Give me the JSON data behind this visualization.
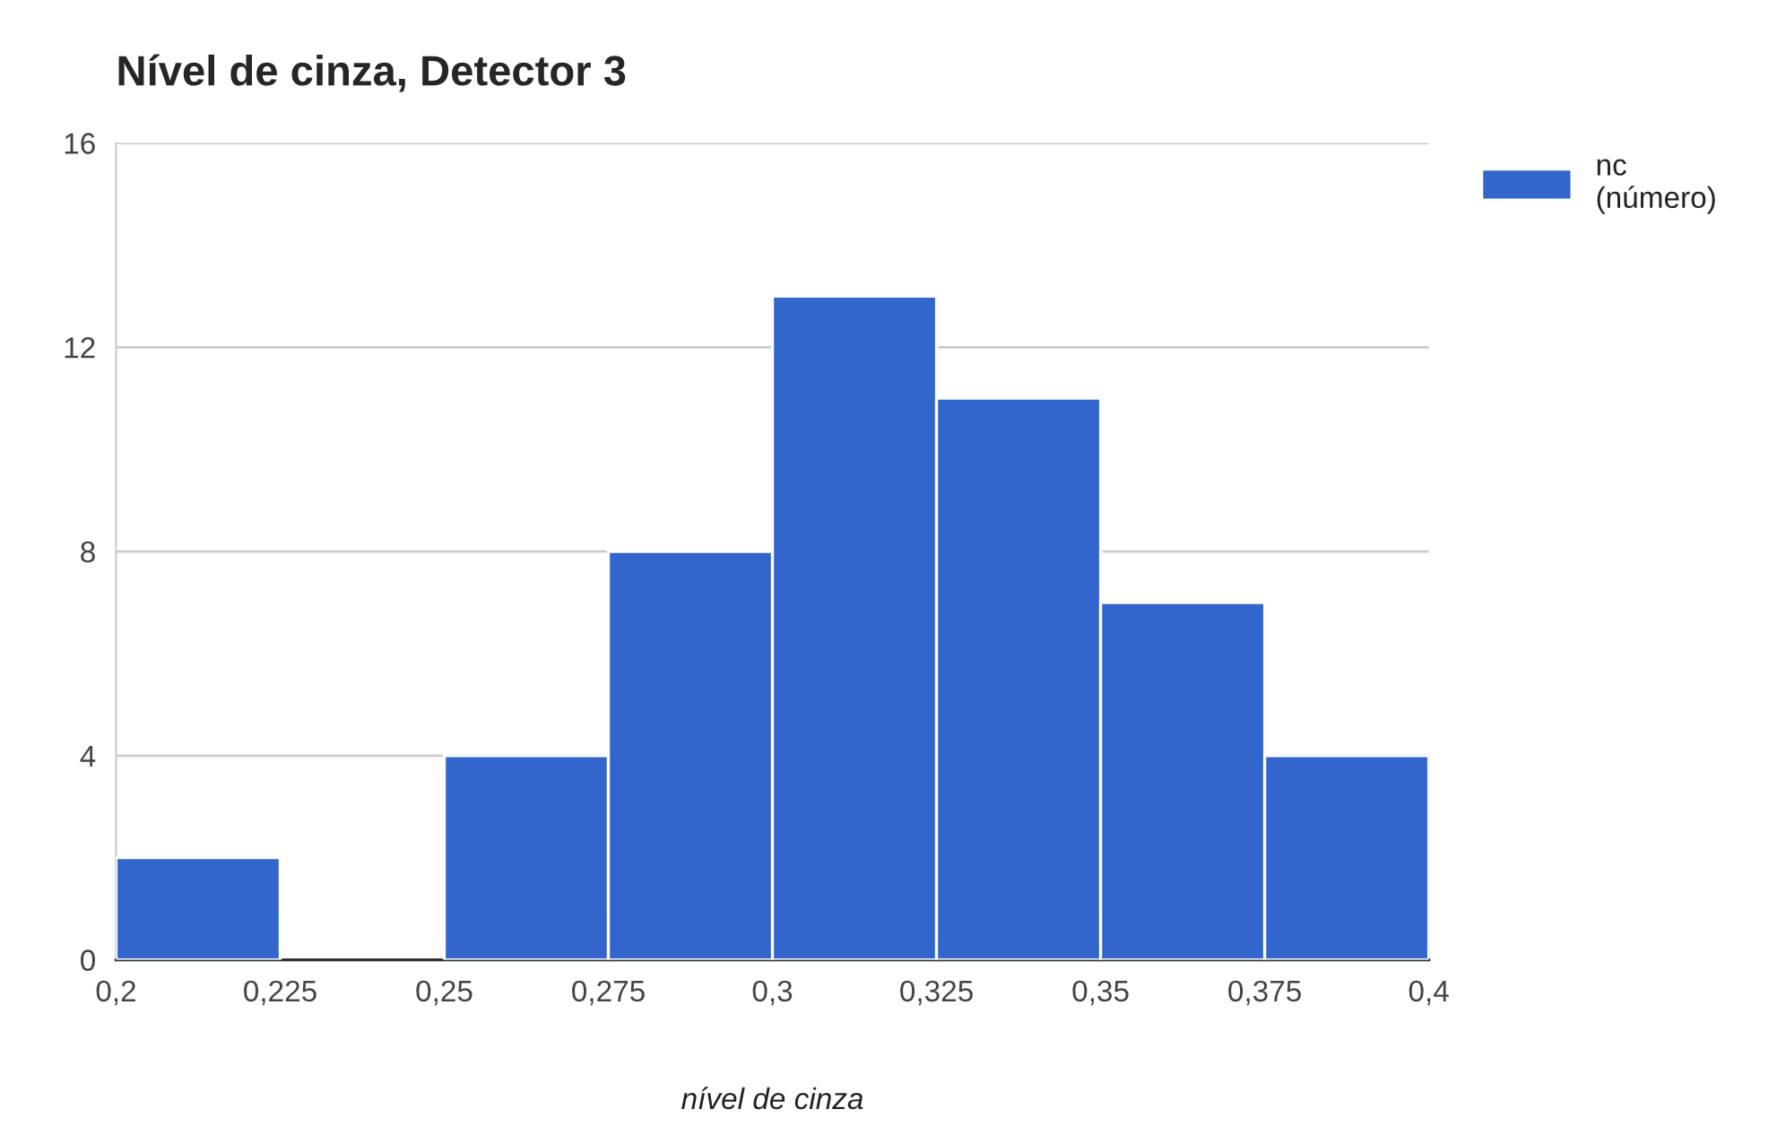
{
  "chart_data": {
    "type": "histogram",
    "title": "Nível de cinza, Detector 3",
    "xlabel": "nível de cinza",
    "bins": [
      0.2,
      0.225,
      0.25,
      0.275,
      0.3,
      0.325,
      0.35,
      0.375,
      0.4
    ],
    "series": [
      {
        "name": "nc\n(número)",
        "color": "#3366cc",
        "values": [
          2,
          0,
          4,
          8,
          13,
          11,
          7,
          4
        ]
      }
    ],
    "xlim": [
      0.2,
      0.4
    ],
    "xticks": [
      {
        "value": 0.2,
        "label": "0,2"
      },
      {
        "value": 0.225,
        "label": "0,225"
      },
      {
        "value": 0.25,
        "label": "0,25"
      },
      {
        "value": 0.275,
        "label": "0,275"
      },
      {
        "value": 0.3,
        "label": "0,3"
      },
      {
        "value": 0.325,
        "label": "0,325"
      },
      {
        "value": 0.35,
        "label": "0,35"
      },
      {
        "value": 0.375,
        "label": "0,375"
      },
      {
        "value": 0.4,
        "label": "0,4"
      }
    ],
    "ylim": [
      0,
      16
    ],
    "yticks": [
      0,
      4,
      8,
      12,
      16
    ],
    "grid": "y",
    "legend": "top right"
  }
}
